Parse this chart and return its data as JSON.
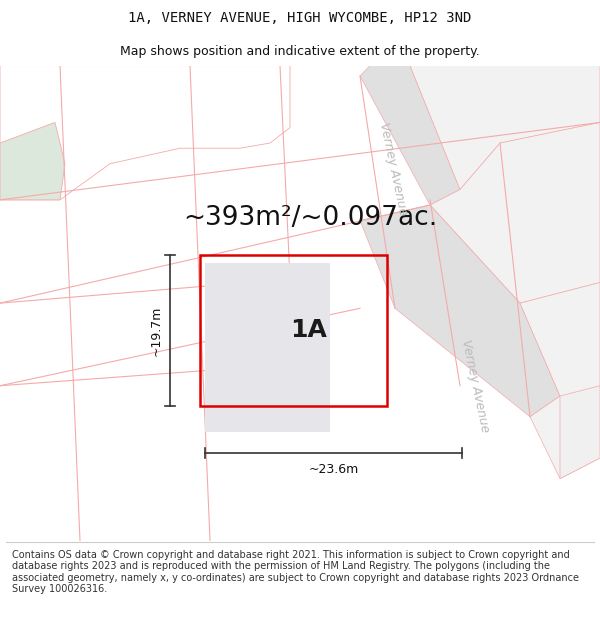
{
  "title_line1": "1A, VERNEY AVENUE, HIGH WYCOMBE, HP12 3ND",
  "title_line2": "Map shows position and indicative extent of the property.",
  "footer_text": "Contains OS data © Crown copyright and database right 2021. This information is subject to Crown copyright and database rights 2023 and is reproduced with the permission of HM Land Registry. The polygons (including the associated geometry, namely x, y co-ordinates) are subject to Crown copyright and database rights 2023 Ordnance Survey 100026316.",
  "area_text": "~393m²/~0.097ac.",
  "label_1A": "1A",
  "dim_width": "~23.6m",
  "dim_height": "~19.7m",
  "street_name_1": "Verney Avenue",
  "street_name_2": "Verney Avenue",
  "bg_color": "#ffffff",
  "map_bg": "#ffffff",
  "plot_fill": "#e6e6ea",
  "plot_border": "#dd0000",
  "grid_line_color": "#f5aaaa",
  "parcel_line_color": "#f5aaaa",
  "footer_divider_color": "#cccccc",
  "title_fontsize": 10,
  "subtitle_fontsize": 9,
  "footer_fontsize": 7,
  "area_fontsize": 19,
  "label_fontsize": 18,
  "dim_fontsize": 9,
  "street_fontsize": 9,
  "street_color": "#bbbbbb"
}
